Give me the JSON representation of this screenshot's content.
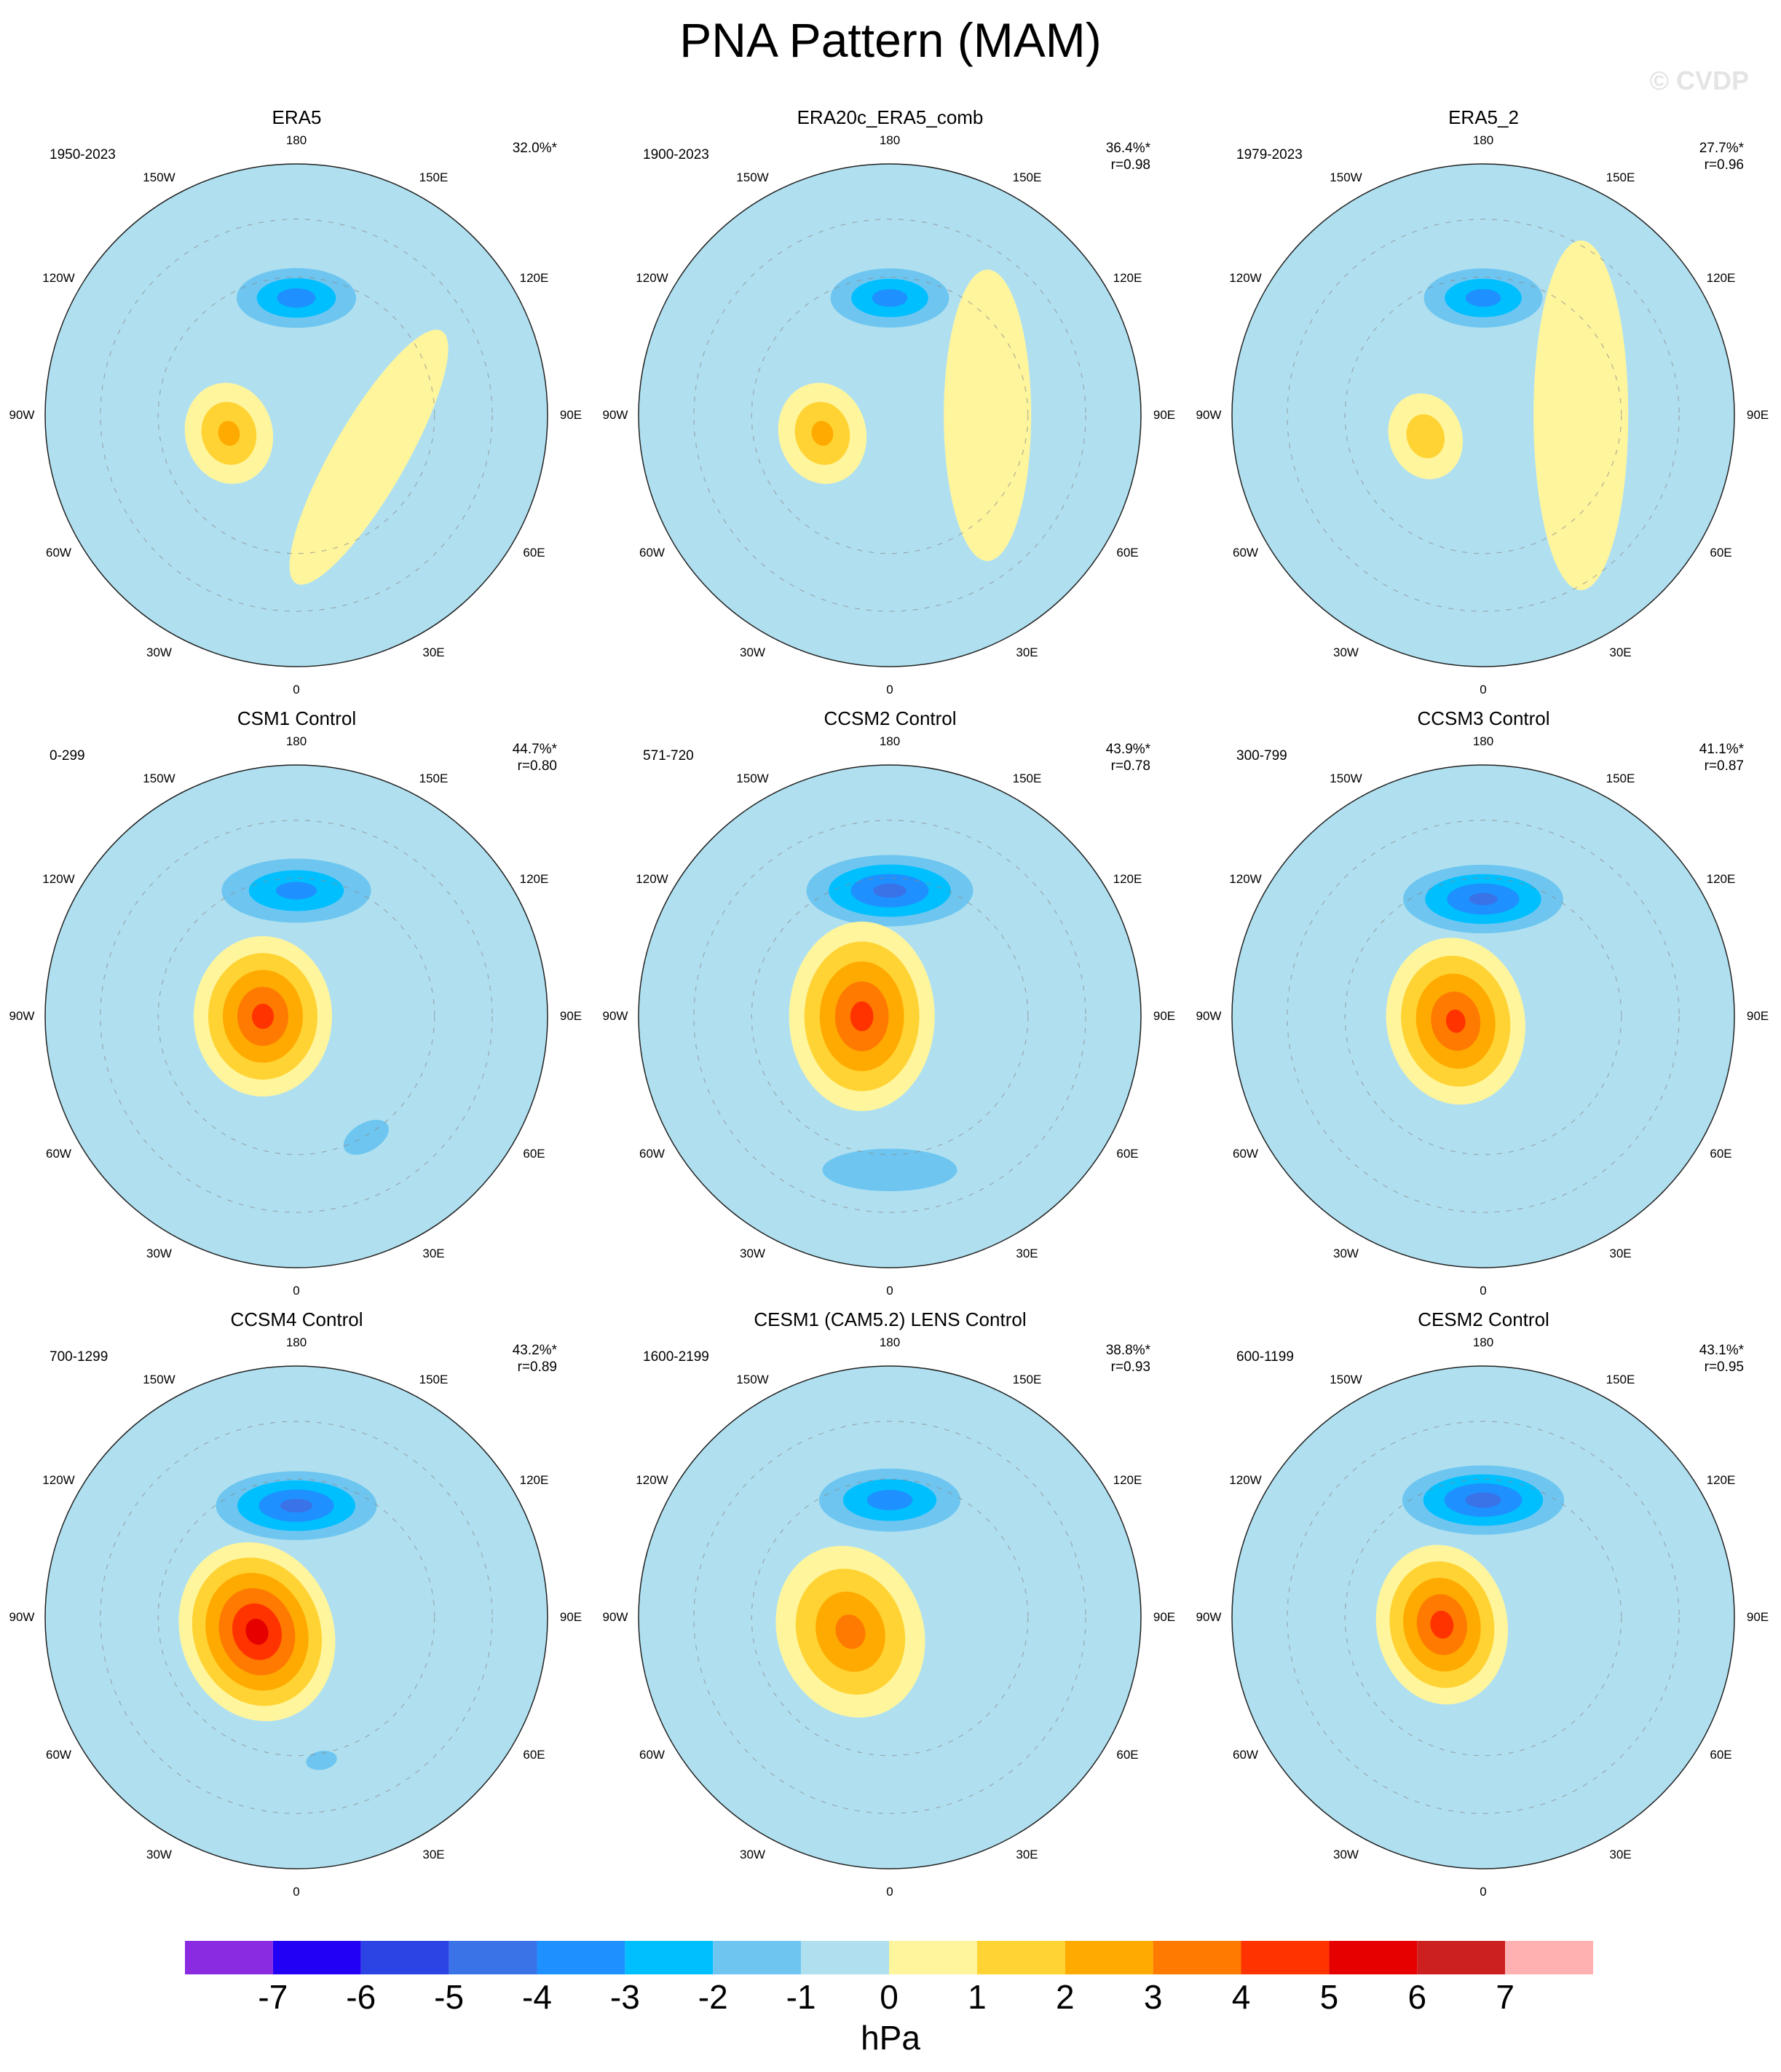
{
  "title": "PNA Pattern (MAM)",
  "watermark": "© CVDP",
  "units": "hPa",
  "lon_labels": [
    "180",
    "150E",
    "120E",
    "90E",
    "60E",
    "30E",
    "0",
    "30W",
    "60W",
    "90W",
    "120W",
    "150W"
  ],
  "colorbar": {
    "colors": [
      "#8a2be2",
      "#2200f5",
      "#2c44e4",
      "#3a73e8",
      "#1e90ff",
      "#00bfff",
      "#6ec6f0",
      "#b0e0f0",
      "#fff59d",
      "#ffd333",
      "#ffaa00",
      "#ff7a00",
      "#ff3300",
      "#e60000",
      "#cc1f1f",
      "#ffb0b0"
    ],
    "ticks": [
      "-7",
      "-6",
      "-5",
      "-4",
      "-3",
      "-2",
      "-1",
      "0",
      "1",
      "2",
      "3",
      "4",
      "5",
      "6",
      "7"
    ]
  },
  "panels": [
    {
      "name": "ERA5",
      "period": "1950-2023",
      "pct": "32.0%*",
      "r": "",
      "fields": [
        {
          "lon": 180,
          "lat": 48,
          "rx": 110,
          "ry": 55,
          "amp": -3.6
        },
        {
          "lon": 285,
          "lat": 65,
          "rx": 70,
          "ry": 60,
          "amp": 2.3
        },
        {
          "lon": 60,
          "lat": 60,
          "rx": 200,
          "ry": 50,
          "amp": 0.8
        },
        {
          "lon": 0,
          "lat": 15,
          "rx": 260,
          "ry": 50,
          "amp": -0.6
        }
      ]
    },
    {
      "name": "ERA20c_ERA5_comb",
      "period": "1900-2023",
      "pct": "36.4%*",
      "r": "r=0.98",
      "fields": [
        {
          "lon": 180,
          "lat": 48,
          "rx": 110,
          "ry": 55,
          "amp": -3.5
        },
        {
          "lon": 285,
          "lat": 65,
          "rx": 70,
          "ry": 60,
          "amp": 2.3
        },
        {
          "lon": 90,
          "lat": 55,
          "rx": 200,
          "ry": 60,
          "amp": 0.8
        }
      ]
    },
    {
      "name": "ERA5_2",
      "period": "1979-2023",
      "pct": "27.7%*",
      "r": "r=0.96",
      "fields": [
        {
          "lon": 180,
          "lat": 48,
          "rx": 110,
          "ry": 55,
          "amp": -3.5
        },
        {
          "lon": 290,
          "lat": 68,
          "rx": 60,
          "ry": 50,
          "amp": 1.7
        },
        {
          "lon": 90,
          "lat": 55,
          "rx": 240,
          "ry": 65,
          "amp": 0.8
        }
      ]
    },
    {
      "name": "CSM1 Control",
      "period": "0-299",
      "pct": "44.7%*",
      "r": "r=0.80",
      "fields": [
        {
          "lon": 180,
          "lat": 45,
          "rx": 140,
          "ry": 60,
          "amp": -3.4
        },
        {
          "lon": 270,
          "lat": 78,
          "rx": 110,
          "ry": 95,
          "amp": 4.4
        },
        {
          "lon": 30,
          "lat": 40,
          "rx": 70,
          "ry": 40,
          "amp": -1.6
        }
      ]
    },
    {
      "name": "CCSM2 Control",
      "period": "571-720",
      "pct": "43.9%*",
      "r": "r=0.78",
      "fields": [
        {
          "lon": 180,
          "lat": 45,
          "rx": 145,
          "ry": 62,
          "amp": -4.4
        },
        {
          "lon": 270,
          "lat": 80,
          "rx": 130,
          "ry": 100,
          "amp": 4.4
        },
        {
          "lon": 0,
          "lat": 35,
          "rx": 190,
          "ry": 60,
          "amp": -1.6
        }
      ]
    },
    {
      "name": "CCSM3 Control",
      "period": "300-799",
      "pct": "41.1%*",
      "r": "r=0.87",
      "fields": [
        {
          "lon": 180,
          "lat": 48,
          "rx": 140,
          "ry": 60,
          "amp": -4.3
        },
        {
          "lon": 280,
          "lat": 80,
          "rx": 115,
          "ry": 95,
          "amp": 4.3
        }
      ]
    },
    {
      "name": "CCSM4 Control",
      "period": "700-1299",
      "pct": "43.2%*",
      "r": "r=0.89",
      "fields": [
        {
          "lon": 180,
          "lat": 50,
          "rx": 140,
          "ry": 60,
          "amp": -4.4
        },
        {
          "lon": 290,
          "lat": 75,
          "rx": 125,
          "ry": 105,
          "amp": 5.5
        },
        {
          "lon": 10,
          "lat": 38,
          "rx": 50,
          "ry": 30,
          "amp": -1.4
        }
      ]
    },
    {
      "name": "CESM1 (CAM5.2) LENS Control",
      "period": "1600-2199",
      "pct": "38.8%*",
      "r": "r=0.93",
      "fields": [
        {
          "lon": 180,
          "lat": 48,
          "rx": 130,
          "ry": 58,
          "amp": -3.6
        },
        {
          "lon": 290,
          "lat": 75,
          "rx": 120,
          "ry": 100,
          "amp": 3.4
        }
      ]
    },
    {
      "name": "CESM2 Control",
      "period": "600-1199",
      "pct": "43.1%*",
      "r": "r=0.95",
      "fields": [
        {
          "lon": 180,
          "lat": 48,
          "rx": 140,
          "ry": 60,
          "amp": -4.5
        },
        {
          "lon": 280,
          "lat": 75,
          "rx": 110,
          "ry": 90,
          "amp": 4.5
        }
      ]
    }
  ]
}
